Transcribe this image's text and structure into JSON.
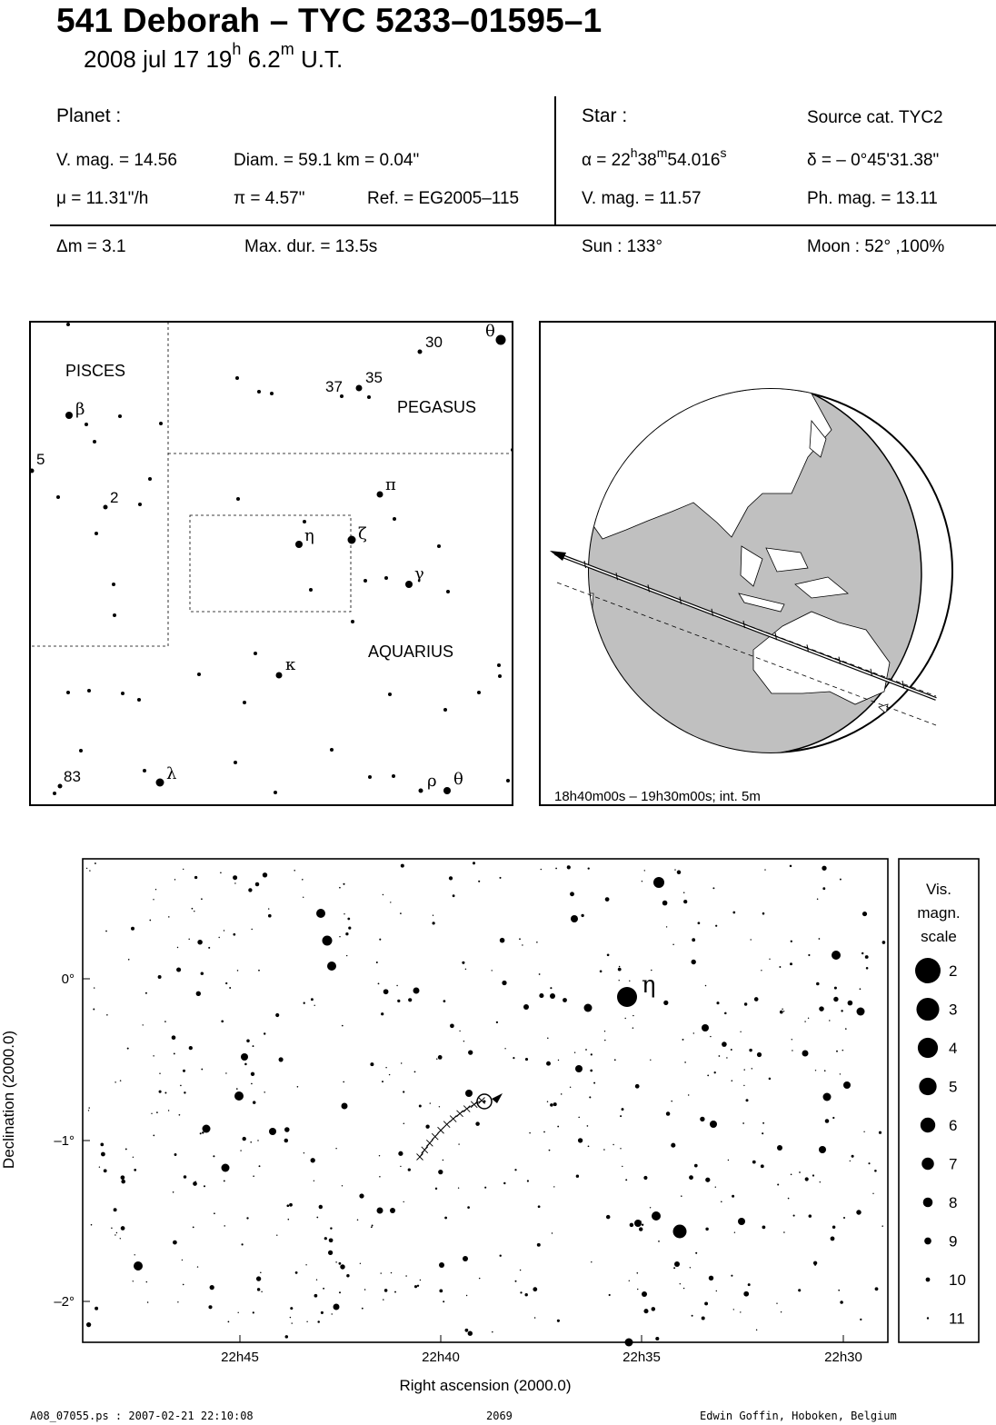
{
  "header": {
    "title": "541 Deborah  –  TYC 5233–01595–1",
    "date": "2008 jul 17  19",
    "hour_unit": "h",
    "minutes": " 6.2",
    "minute_unit": "m",
    "time_suffix": " U.T."
  },
  "planet": {
    "heading": "Planet :",
    "vmag": "V. mag. = 14.56",
    "diam": "Diam. = 59.1 km = 0.04\"",
    "mu": "μ =  11.31\"/h",
    "pi": "π =  4.57\"",
    "ref": "Ref. = EG2005–115"
  },
  "star": {
    "heading": "Star :",
    "source": "Source cat.  TYC2",
    "alpha_prefix": "α = 22",
    "alpha_h": "h",
    "alpha_min": "38",
    "alpha_m": "m",
    "alpha_sec": "54.016",
    "alpha_s": "s",
    "delta": "δ = – 0°45'31.38\"",
    "vmag": "V. mag. = 11.57",
    "phmag": "Ph. mag. = 13.11"
  },
  "summary": {
    "dm": "Δm = 3.1",
    "maxdur": "Max. dur. = 13.5s",
    "sun": "Sun : 133°",
    "moon": "Moon :  52° ,100%"
  },
  "finder": {
    "constellations": [
      "PISCES",
      "PEGASUS",
      "AQUARIUS"
    ],
    "star_labels": [
      {
        "id": "theta-peg",
        "text": "θ",
        "greek": true
      },
      {
        "id": "n30",
        "text": "30",
        "greek": false
      },
      {
        "id": "n37",
        "text": "37",
        "greek": false
      },
      {
        "id": "n35",
        "text": "35",
        "greek": false
      },
      {
        "id": "beta",
        "text": "β",
        "greek": true
      },
      {
        "id": "n5",
        "text": "5",
        "greek": false
      },
      {
        "id": "n2",
        "text": "2",
        "greek": false
      },
      {
        "id": "pi",
        "text": "π",
        "greek": true
      },
      {
        "id": "eta",
        "text": "η",
        "greek": true
      },
      {
        "id": "zeta",
        "text": "ζ",
        "greek": true
      },
      {
        "id": "gamma",
        "text": "γ",
        "greek": true
      },
      {
        "id": "kappa",
        "text": "κ",
        "greek": true
      },
      {
        "id": "n83",
        "text": "83",
        "greek": false
      },
      {
        "id": "lambda",
        "text": "λ",
        "greek": true
      },
      {
        "id": "rho",
        "text": "ρ",
        "greek": true
      },
      {
        "id": "theta-aqr",
        "text": "θ",
        "greek": true
      }
    ]
  },
  "globe": {
    "caption": "18h40m00s – 19h30m00s; int.  5m"
  },
  "chart": {
    "eta_label": "η",
    "y_ticks": [
      "0°",
      "–1°",
      "–2°"
    ],
    "x_ticks": [
      "22h45",
      "22h40",
      "22h35",
      "22h30"
    ],
    "x_label": "Right ascension (2000.0)",
    "y_label": "Declination (2000.0)"
  },
  "legend": {
    "title_lines": [
      "Vis.",
      "magn.",
      "scale"
    ],
    "magnitudes": [
      "2",
      "3",
      "4",
      "5",
      "6",
      "7",
      "8",
      "9",
      "10",
      "11"
    ]
  },
  "footer": {
    "file": "A08_07055.ps : 2007-02-21 22:10:08",
    "page": "2069",
    "author": "Edwin Goffin, Hoboken, Belgium"
  }
}
